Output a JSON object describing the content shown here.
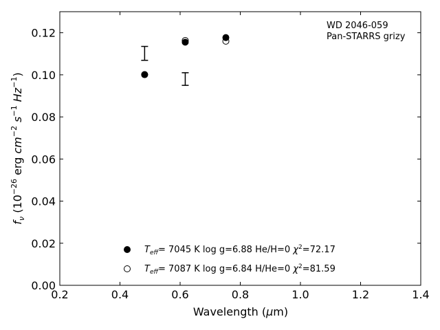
{
  "chart_data": {
    "type": "scatter",
    "title": "",
    "xlabel": "Wavelength (μm)",
    "ylabel": "f_ν (10^-26 erg cm^-2 s^-1 Hz^-1)",
    "xlim": [
      0.2,
      1.4
    ],
    "ylim": [
      0.0,
      0.13
    ],
    "xticks": [
      0.2,
      0.4,
      0.6,
      0.8,
      1.0,
      1.2,
      1.4
    ],
    "xtick_labels": [
      "0.2",
      "0.4",
      "0.6",
      "0.8",
      "1.0",
      "1.2",
      "1.4"
    ],
    "yticks": [
      0.0,
      0.02,
      0.04,
      0.06,
      0.08,
      0.1,
      0.12
    ],
    "ytick_labels": [
      "0.00",
      "0.02",
      "0.04",
      "0.06",
      "0.08",
      "0.10",
      "0.12"
    ],
    "grid": false,
    "annotation_lines": [
      "WD 2046-059",
      "Pan-STARRS grizy"
    ],
    "observed": {
      "x": [
        0.482,
        0.617
      ],
      "y": [
        0.1102,
        0.098
      ],
      "yerr": [
        0.0033,
        0.003
      ]
    },
    "series": [
      {
        "name": "Teff= 7045 K log g=6.88 He/H=0 χ²=72.17",
        "marker": "filled-circle",
        "x": [
          0.482,
          0.617,
          0.752
        ],
        "y": [
          0.1001,
          0.1155,
          0.1177
        ]
      },
      {
        "name": "Teff= 7087 K log g=6.84 H/He=0 χ²=81.59",
        "marker": "open-circle",
        "x": [
          0.482,
          0.617,
          0.752
        ],
        "y": [
          0.1001,
          0.1163,
          0.116
        ]
      }
    ],
    "legend_location": "lower-center"
  }
}
